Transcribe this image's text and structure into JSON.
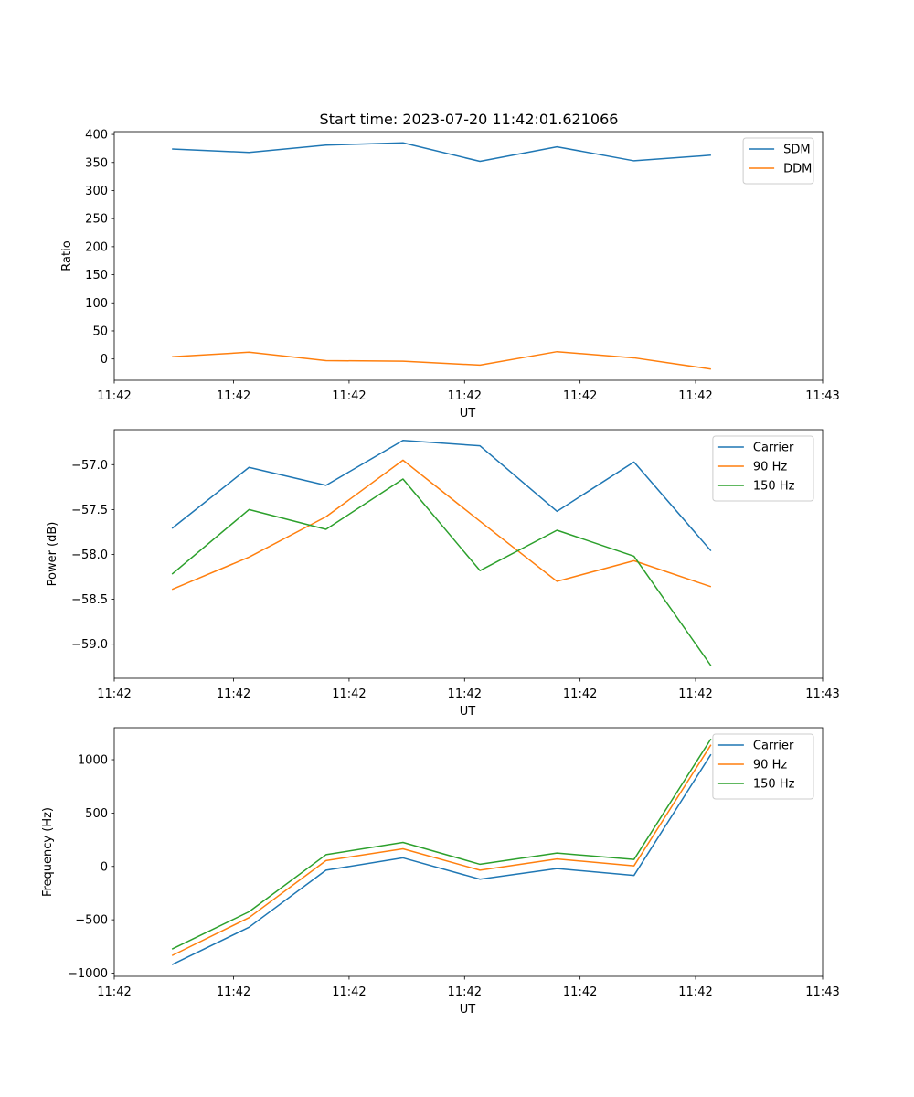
{
  "figure_title": "Start time: 2023-07-20 11:42:01.621066",
  "chart_data": [
    {
      "type": "line",
      "title": "Start time: 2023-07-20 11:42:01.621066",
      "xlabel": "UT",
      "ylabel": "Ratio",
      "x": [
        0,
        1,
        2,
        3,
        4,
        5,
        6,
        7
      ],
      "xlim": [
        -0.75,
        8.45
      ],
      "xticks": [
        -0.75,
        0.8,
        2.3,
        3.8,
        5.3,
        6.8,
        8.45
      ],
      "xtick_labels": [
        "11:42",
        "11:42",
        "11:42",
        "11:42",
        "11:42",
        "11:42",
        "11:43"
      ],
      "ylim": [
        -38,
        405
      ],
      "yticks": [
        0,
        50,
        100,
        150,
        200,
        250,
        300,
        350,
        400
      ],
      "ytick_labels": [
        "0",
        "50",
        "100",
        "150",
        "200",
        "250",
        "300",
        "350",
        "400"
      ],
      "legend_position": "top-right",
      "series": [
        {
          "name": "SDM",
          "color": "#1f77b4",
          "values": [
            374,
            368,
            381,
            385,
            352,
            378,
            353,
            363
          ]
        },
        {
          "name": "DDM",
          "color": "#ff7f0e",
          "values": [
            4,
            12,
            -3,
            -4,
            -11,
            13,
            2,
            -18
          ]
        }
      ]
    },
    {
      "type": "line",
      "title": "",
      "xlabel": "UT",
      "ylabel": "Power (dB)",
      "x": [
        0,
        1,
        2,
        3,
        4,
        5,
        6,
        7
      ],
      "xlim": [
        -0.75,
        8.45
      ],
      "xticks": [
        -0.75,
        0.8,
        2.3,
        3.8,
        5.3,
        6.8,
        8.45
      ],
      "xtick_labels": [
        "11:42",
        "11:42",
        "11:42",
        "11:42",
        "11:42",
        "11:42",
        "11:43"
      ],
      "ylim": [
        -59.38,
        -56.61
      ],
      "yticks": [
        -59.0,
        -58.5,
        -58.0,
        -57.5,
        -57.0
      ],
      "ytick_labels": [
        "−59.0",
        "−58.5",
        "−58.0",
        "−57.5",
        "−57.0"
      ],
      "legend_position": "top-right",
      "series": [
        {
          "name": "Carrier",
          "color": "#1f77b4",
          "values": [
            -57.71,
            -57.03,
            -57.23,
            -56.73,
            -56.79,
            -57.52,
            -56.97,
            -57.96
          ]
        },
        {
          "name": "90 Hz",
          "color": "#ff7f0e",
          "values": [
            -58.39,
            -58.03,
            -57.58,
            -56.95,
            -57.63,
            -58.3,
            -58.07,
            -58.36
          ]
        },
        {
          "name": "150 Hz",
          "color": "#2ca02c",
          "values": [
            -58.22,
            -57.5,
            -57.72,
            -57.16,
            -58.18,
            -57.73,
            -58.02,
            -59.24
          ]
        }
      ]
    },
    {
      "type": "line",
      "title": "",
      "xlabel": "UT",
      "ylabel": "Frequency (Hz)",
      "x": [
        0,
        1,
        2,
        3,
        4,
        5,
        6,
        7
      ],
      "xlim": [
        -0.75,
        8.45
      ],
      "xticks": [
        -0.75,
        0.8,
        2.3,
        3.8,
        5.3,
        6.8,
        8.45
      ],
      "xtick_labels": [
        "11:42",
        "11:42",
        "11:42",
        "11:42",
        "11:42",
        "11:42",
        "11:43"
      ],
      "ylim": [
        -1030,
        1300
      ],
      "yticks": [
        -1000,
        -500,
        0,
        500,
        1000
      ],
      "ytick_labels": [
        "−1000",
        "−500",
        "0",
        "500",
        "1000"
      ],
      "legend_position": "top-right",
      "series": [
        {
          "name": "Carrier",
          "color": "#1f77b4",
          "values": [
            -920,
            -570,
            -35,
            80,
            -120,
            -20,
            -85,
            1050
          ]
        },
        {
          "name": "90 Hz",
          "color": "#ff7f0e",
          "values": [
            -835,
            -480,
            55,
            165,
            -35,
            70,
            5,
            1140
          ]
        },
        {
          "name": "150 Hz",
          "color": "#2ca02c",
          "values": [
            -775,
            -425,
            110,
            225,
            20,
            125,
            65,
            1195
          ]
        }
      ]
    }
  ]
}
